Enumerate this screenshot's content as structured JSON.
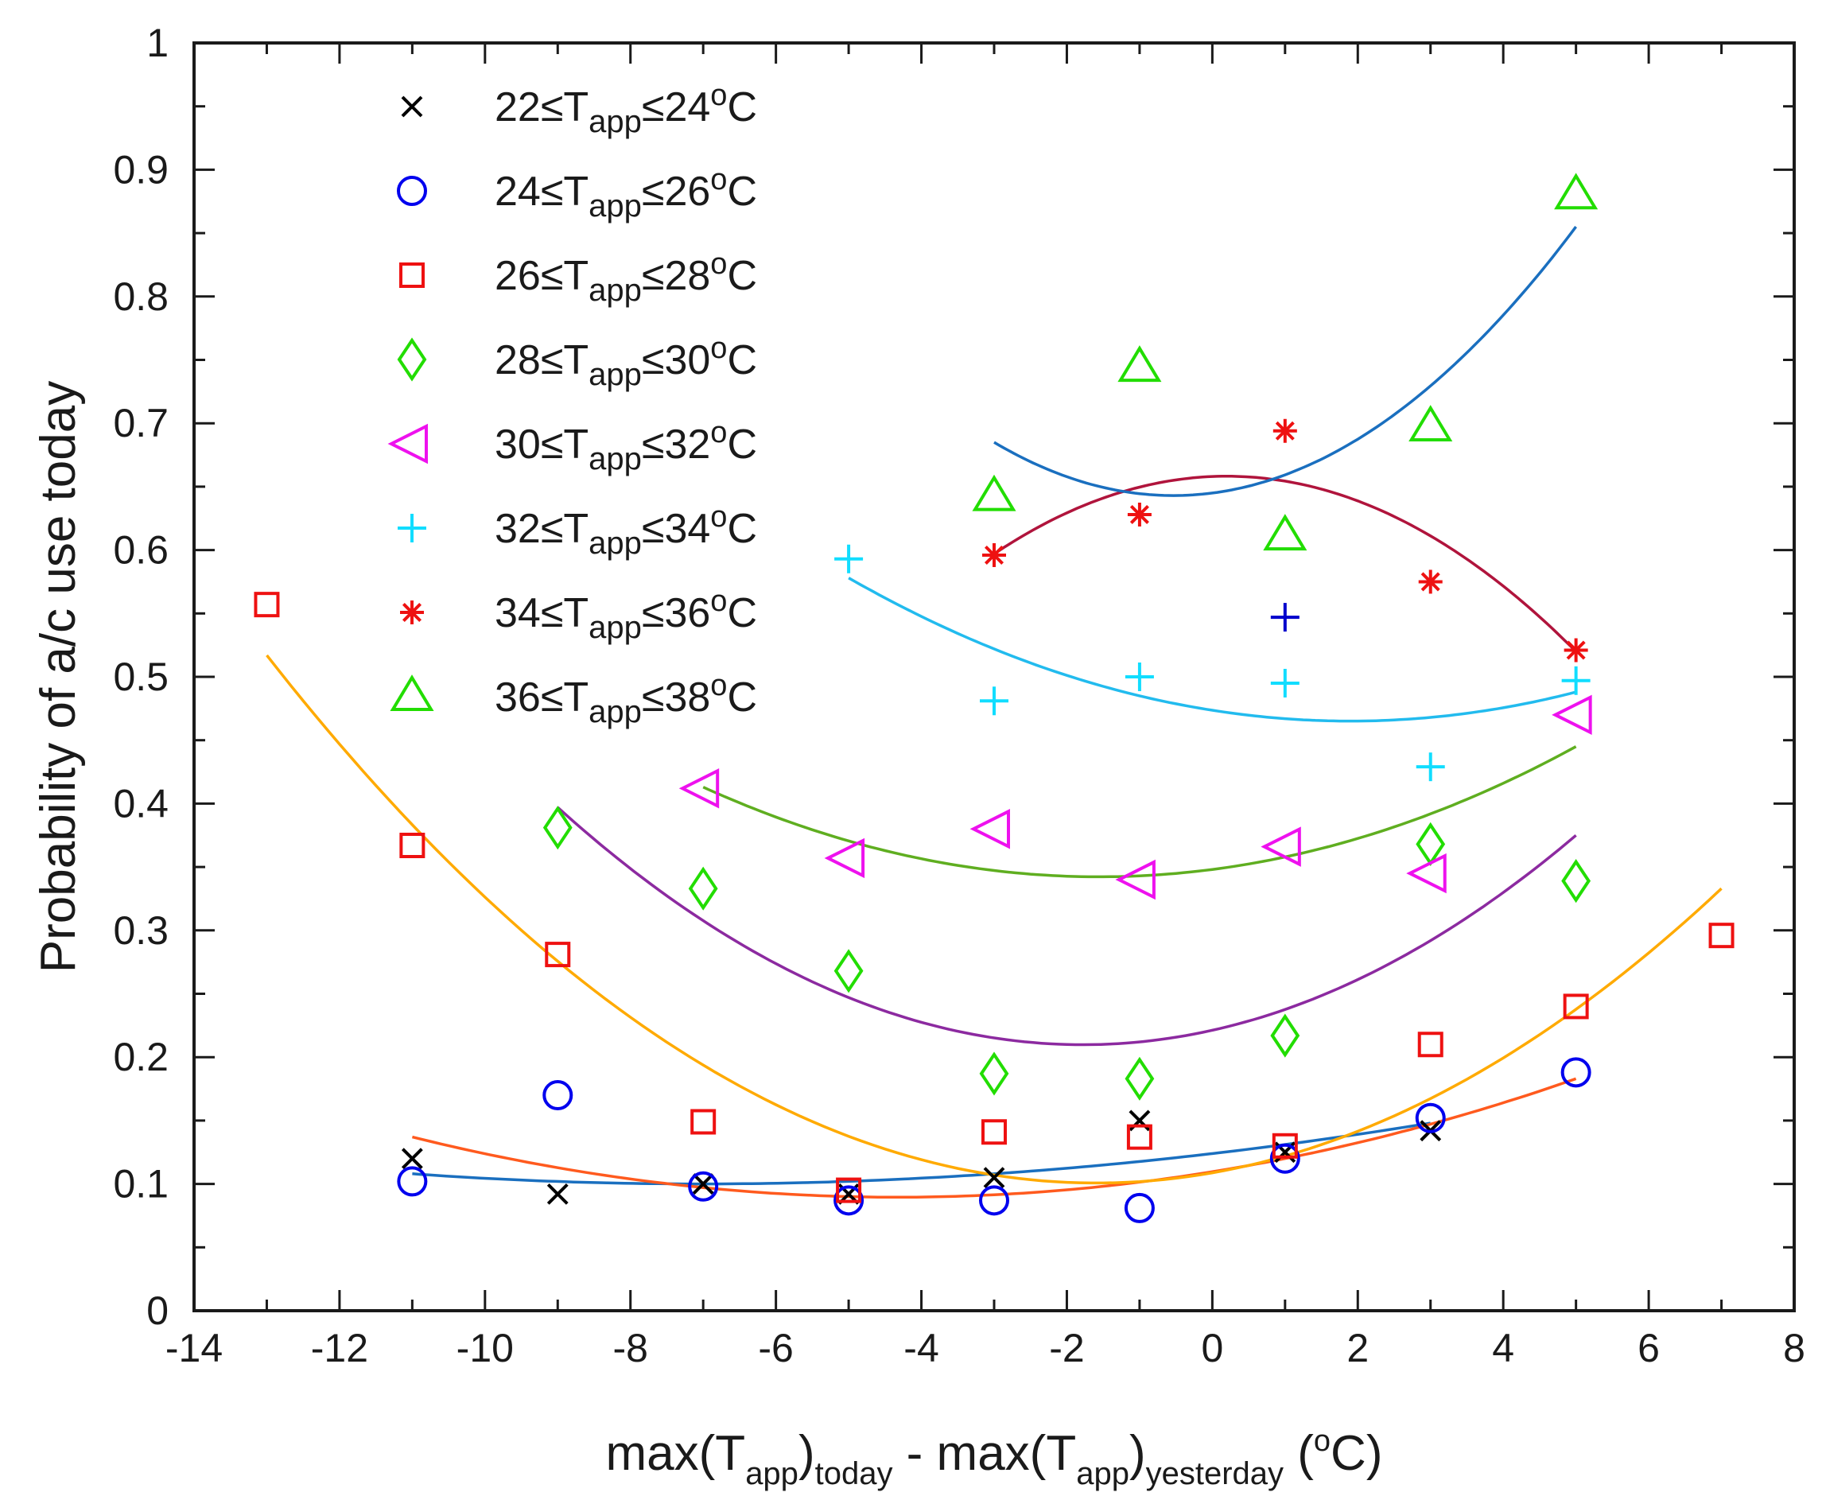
{
  "chart_data": {
    "type": "scatter",
    "xlabel": {
      "parts": [
        {
          "text": "max(T",
          "style": "normal"
        },
        {
          "text": "app",
          "style": "sub"
        },
        {
          "text": ")",
          "style": "normal"
        },
        {
          "text": "today",
          "style": "sub"
        },
        {
          "text": " - max(T",
          "style": "normal"
        },
        {
          "text": "app",
          "style": "sub"
        },
        {
          "text": ")",
          "style": "normal"
        },
        {
          "text": "yesterday",
          "style": "sub"
        },
        {
          "text": " (",
          "style": "normal"
        },
        {
          "text": "o",
          "style": "sup"
        },
        {
          "text": "C)",
          "style": "normal"
        }
      ]
    },
    "ylabel": "Probability of a/c use today",
    "xlim": [
      -14,
      8
    ],
    "ylim": [
      0,
      1
    ],
    "xticks": [
      "-14",
      "-12",
      "-10",
      "-8",
      "-6",
      "-4",
      "-2",
      "0",
      "2",
      "4",
      "6",
      "8"
    ],
    "yticks": [
      "0",
      "0.1",
      "0.2",
      "0.3",
      "0.4",
      "0.5",
      "0.6",
      "0.7",
      "0.8",
      "0.9",
      "1"
    ],
    "legend_position": "top-left",
    "series": [
      {
        "name": "22-24",
        "label_lo": "22",
        "label_hi": "24",
        "marker": "x",
        "color": "#000000",
        "points": [
          [
            -11,
            0.12
          ],
          [
            -9,
            0.092
          ],
          [
            -7,
            0.1
          ],
          [
            -5,
            0.092
          ],
          [
            -3,
            0.105
          ],
          [
            -1,
            0.15
          ],
          [
            1,
            0.125
          ],
          [
            3,
            0.142
          ]
        ]
      },
      {
        "name": "24-26",
        "label_lo": "24",
        "label_hi": "26",
        "marker": "circle",
        "color": "#0000ee",
        "points": [
          [
            -11,
            0.102
          ],
          [
            -9,
            0.17
          ],
          [
            -7,
            0.098
          ],
          [
            -5,
            0.087
          ],
          [
            -3,
            0.087
          ],
          [
            -1,
            0.081
          ],
          [
            1,
            0.12
          ],
          [
            3,
            0.152
          ],
          [
            5,
            0.188
          ]
        ]
      },
      {
        "name": "26-28",
        "label_lo": "26",
        "label_hi": "28",
        "marker": "square",
        "color": "#ee1111",
        "points": [
          [
            -13,
            0.557
          ],
          [
            -11,
            0.367
          ],
          [
            -9,
            0.281
          ],
          [
            -7,
            0.149
          ],
          [
            -5,
            0.095
          ],
          [
            -3,
            0.141
          ],
          [
            -1,
            0.137
          ],
          [
            1,
            0.13
          ],
          [
            3,
            0.21
          ],
          [
            5,
            0.24
          ],
          [
            7,
            0.296
          ]
        ]
      },
      {
        "name": "28-30",
        "label_lo": "28",
        "label_hi": "30",
        "marker": "diamond",
        "color": "#22dd00",
        "points": [
          [
            -9,
            0.381
          ],
          [
            -7,
            0.333
          ],
          [
            -5,
            0.268
          ],
          [
            -3,
            0.187
          ],
          [
            -1,
            0.183
          ],
          [
            1,
            0.217
          ],
          [
            3,
            0.368
          ],
          [
            5,
            0.339
          ]
        ]
      },
      {
        "name": "30-32",
        "label_lo": "30",
        "label_hi": "32",
        "marker": "triangle-left",
        "color": "#ee11ee",
        "points": [
          [
            -7,
            0.412
          ],
          [
            -5,
            0.357
          ],
          [
            -3,
            0.38
          ],
          [
            -1,
            0.34
          ],
          [
            1,
            0.366
          ],
          [
            3,
            0.345
          ],
          [
            5,
            0.47
          ]
        ]
      },
      {
        "name": "32-34",
        "label_lo": "32",
        "label_hi": "34",
        "marker": "plus",
        "color": "#11ddff",
        "points": [
          [
            -5,
            0.593
          ],
          [
            -3,
            0.481
          ],
          [
            -1,
            0.5
          ],
          [
            1,
            0.495
          ],
          [
            3,
            0.429
          ],
          [
            5,
            0.497
          ]
        ]
      },
      {
        "name": "34-36",
        "label_lo": "34",
        "label_hi": "36",
        "marker": "asterisk",
        "color": "#ee1111",
        "points": [
          [
            -3,
            0.596
          ],
          [
            -1,
            0.628
          ],
          [
            1,
            0.694
          ],
          [
            3,
            0.575
          ],
          [
            5,
            0.521
          ]
        ]
      },
      {
        "name": "36-38",
        "label_lo": "36",
        "label_hi": "38",
        "marker": "triangle-up",
        "color": "#22dd00",
        "points": [
          [
            -3,
            0.642
          ],
          [
            -1,
            0.744
          ],
          [
            1,
            0.611
          ],
          [
            3,
            0.697
          ],
          [
            5,
            0.88
          ]
        ]
      }
    ],
    "extra_points": [
      {
        "marker": "plus",
        "color": "#0000cc",
        "point": [
          1,
          0.547
        ]
      }
    ],
    "fit_curves": [
      {
        "color": "#1a6fbf",
        "from": -11,
        "to": 3,
        "points": [
          [
            -11,
            0.108
          ],
          [
            -7,
            0.1
          ],
          [
            -3,
            0.108
          ],
          [
            3,
            0.148
          ]
        ]
      },
      {
        "color": "#ff5a1e",
        "from": -11,
        "to": 5,
        "points": [
          [
            -11,
            0.137
          ],
          [
            -5,
            0.09
          ],
          [
            1,
            0.12
          ],
          [
            5,
            0.183
          ]
        ]
      },
      {
        "color": "#ffaa00",
        "from": -13,
        "to": 7,
        "points": [
          [
            -13,
            0.517
          ],
          [
            -3,
            0.107
          ],
          [
            1,
            0.122
          ],
          [
            7,
            0.333
          ]
        ]
      },
      {
        "color": "#8c2aa0",
        "from": -9,
        "to": 5,
        "points": [
          [
            -9,
            0.397
          ],
          [
            -2,
            0.21
          ],
          [
            5,
            0.375
          ]
        ]
      },
      {
        "color": "#5fae20",
        "from": -7,
        "to": 5,
        "points": [
          [
            -7,
            0.413
          ],
          [
            -1,
            0.343
          ],
          [
            5,
            0.445
          ]
        ]
      },
      {
        "color": "#22bbee",
        "from": -5,
        "to": 5,
        "points": [
          [
            -5,
            0.578
          ],
          [
            1,
            0.467
          ],
          [
            5,
            0.488
          ]
        ]
      },
      {
        "color": "#b0143c",
        "from": -3,
        "to": 5,
        "points": [
          [
            -3,
            0.597
          ],
          [
            0,
            0.658
          ],
          [
            5,
            0.52
          ]
        ]
      },
      {
        "color": "#1a6fbf",
        "from": -3,
        "to": 5,
        "points": [
          [
            -3,
            0.685
          ],
          [
            -0.5,
            0.643
          ],
          [
            5,
            0.855
          ]
        ]
      }
    ]
  }
}
